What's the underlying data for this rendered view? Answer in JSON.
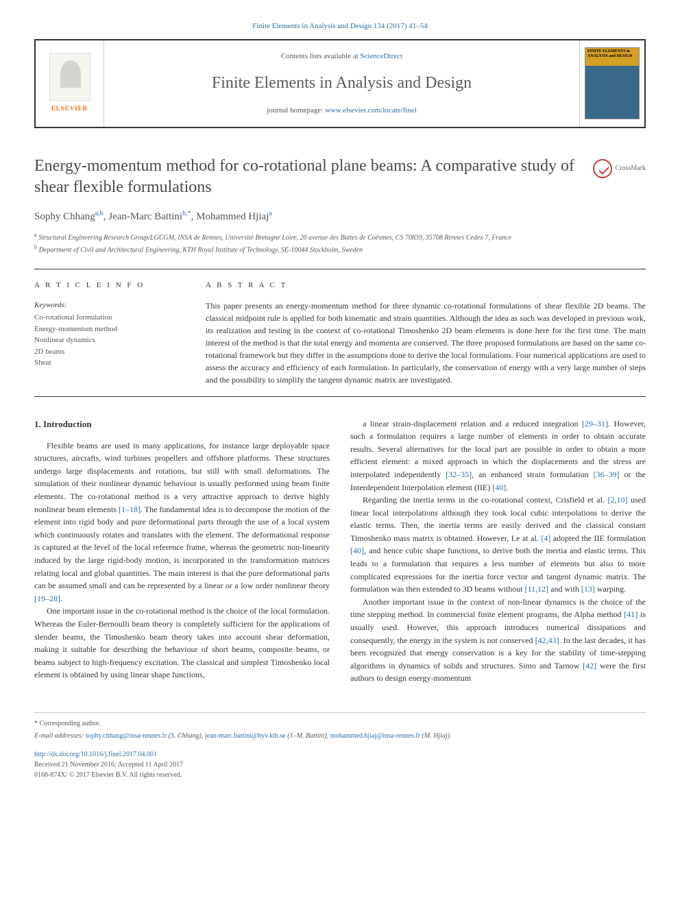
{
  "top_citation": "Finite Elements in Analysis and Design 134 (2017) 41–54",
  "header": {
    "contents_prefix": "Contents lists available at ",
    "contents_link": "ScienceDirect",
    "journal_name": "Finite Elements in Analysis and Design",
    "homepage_prefix": "journal homepage: ",
    "homepage_url": "www.elsevier.com/locate/finel",
    "publisher": "ELSEVIER",
    "cover_label": "FINITE ELEMENTS in ANALYSIS and DESIGN"
  },
  "crossmark": "CrossMark",
  "title": "Energy-momentum method for co-rotational plane beams: A comparative study of shear flexible formulations",
  "authors_html": "Sophy Chhang<sup>a,b</sup>, Jean-Marc Battini<sup>b,*</sup>, Mohammed Hjiaj<sup>a</sup>",
  "affiliations": {
    "a": "a Structural Engineering Research Group/LGCGM, INSA de Rennes, Université Bretagne Loire, 20 avenue des Buttes de Coësmes, CS 70839, 35708 Rennes Cedex 7, France",
    "b": "b Department of Civil and Architectural Engineering, KTH Royal Institute of Technology, SE-10044 Stockholm, Sweden"
  },
  "article_info": {
    "head": "A R T I C L E  I N F O",
    "keywords_label": "Keywords:",
    "keywords": [
      "Co-rotational formulation",
      "Energy-momentum method",
      "Nonlinear dynamics",
      "2D beams",
      "Shear"
    ]
  },
  "abstract": {
    "head": "A B S T R A C T",
    "text": "This paper presents an energy-momentum method for three dynamic co-rotational formulations of shear flexible 2D beams. The classical midpoint rule is applied for both kinematic and strain quantities. Although the idea as such was developed in previous work, its realization and testing in the context of co-rotational Timoshenko 2D beam elements is done here for the first time. The main interest of the method is that the total energy and momenta are conserved. The three proposed formulations are based on the same co-rotational framework but they differ in the assumptions done to derive the local formulations. Four numerical applications are used to assess the accuracy and efficiency of each formulation. In particularly, the conservation of energy with a very large number of steps and the possibility to simplify the tangent dynamic matrix are investigated."
  },
  "introduction": {
    "heading": "1. Introduction",
    "p1_pre": "Flexible beams are used in many applications, for instance large deployable space structures, aircrafts, wind turbines propellers and offshore platforms. These structures undergo large displacements and rotations, but still with small deformations. The simulation of their nonlinear dynamic behaviour is usually performed using beam finite elements. The co-rotational method is a very attractive approach to derive highly nonlinear beam elements ",
    "p1_ref1": "[1–18]",
    "p1_mid": ". The fundamental idea is to decompose the motion of the element into rigid body and pure deformational parts through the use of a local system which continuously rotates and translates with the element. The deformational response is captured at the level of the local reference frame, whereas the geometric non-linearity induced by the large rigid-body motion, is incorporated in the transformation matrices relating local and global quantities. The main interest is that the pure deformational parts can be assumed small and can be represented by a linear or a low order nonlinear theory ",
    "p1_ref2": "[19–28]",
    "p1_end": ".",
    "p2": "One important issue in the co-rotational method is the choice of the local formulation. Whereas the Euler-Bernoulli beam theory is completely sufficient for the applications of slender beams, the Timoshenko beam theory takes into account shear deformation, making it suitable for describing the behaviour of short beams, composite beams, or beams subject to high-frequency excitation. The classical and simplest Timoshenko local element is obtained by using linear shape functions,",
    "p3_pre": "a linear strain-displacement relation and a reduced integration ",
    "p3_ref1": "[29–31]",
    "p3_mid1": ". However, such a formulation requires a large number of elements in order to obtain accurate results. Several alternatives for the local part are possible in order to obtain a more efficient element: a mixed approach in which the displacements and the stress are interpolated independently ",
    "p3_ref2": "[32–35]",
    "p3_mid2": ", an enhanced strain formulation ",
    "p3_ref3": "[36–39]",
    "p3_mid3": " or the Interdependent Interpolation element (IIE) ",
    "p3_ref4": "[40]",
    "p3_end": ".",
    "p4_pre": "Regarding the inertia terms in the co-rotational context, Crisfield et al. ",
    "p4_ref1": "[2,10]",
    "p4_mid1": " used linear local interpolations although they took local cubic interpolations to derive the elastic terms. Then, the inertia terms are easily derived and the classical constant Timoshenko mass matrix is obtained. However, Le at al. ",
    "p4_ref2": "[4]",
    "p4_mid2": " adopted the IIE formulation ",
    "p4_ref3": "[40]",
    "p4_mid3": ", and hence cubic shape functions, to derive both the inertia and elastic terms. This leads to a formulation that requires a less number of elements but also to more complicated expressions for the inertia force vector and tangent dynamic matrix. The formulation was then extended to 3D beams without ",
    "p4_ref4": "[11,12]",
    "p4_mid4": " and with ",
    "p4_ref5": "[13]",
    "p4_end": " warping.",
    "p5_pre": "Another important issue in the context of non-linear dynamics is the choice of the time stepping method. In commercial finite element programs, the Alpha method ",
    "p5_ref1": "[41]",
    "p5_mid1": " is usually used. However, this approach introduces numerical dissipations and consequently, the energy in the system is not conserved ",
    "p5_ref2": "[42,43]",
    "p5_mid2": ". In the last decades, it has been recognized that energy conservation is a key for the stability of time-stepping algorithms in dynamics of solids and structures. Simo and Tarnow ",
    "p5_ref3": "[42]",
    "p5_end": " were the first authors to design energy-momentum"
  },
  "footer": {
    "corresponding": "* Corresponding author.",
    "emails_label": "E-mail addresses: ",
    "email1": "sophy.chhang@insa-rennes.fr",
    "email1_author": " (S. Chhang), ",
    "email2": "jean-marc.battini@byv.kth.se",
    "email2_author": " (J.-M. Battini), ",
    "email3": "mohammed.hjiaj@insa-rennes.fr",
    "email3_author": " (M. Hjiaj).",
    "doi": "http://dx.doi.org/10.1016/j.finel.2017.04.001",
    "received": "Received 21 November 2016; Accepted 11 April 2017",
    "copyright": "0168-874X/ © 2017 Elsevier B.V. All rights reserved."
  },
  "colors": {
    "link": "#2e6da4",
    "text": "#333333",
    "muted": "#555555",
    "orange": "#ff6600",
    "border": "#333333"
  }
}
